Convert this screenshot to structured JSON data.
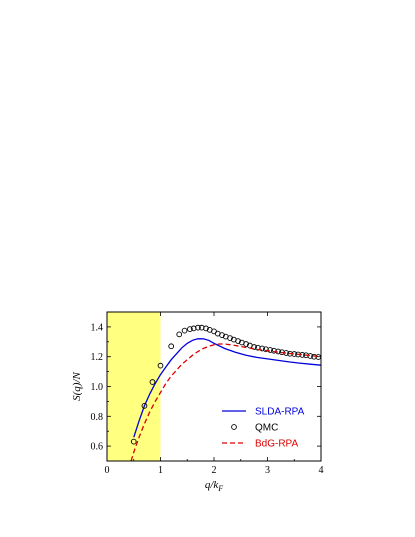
{
  "chart_data": {
    "type": "line",
    "xlabel_main": "q/k",
    "xlabel_sub": "F",
    "ylabel_main": "S(q)/N",
    "xlim": [
      0,
      4
    ],
    "ylim": [
      0.5,
      1.5
    ],
    "x_ticks": [
      0,
      1,
      2,
      3,
      4
    ],
    "x_tick_labels": [
      "0",
      "1",
      "2",
      "3",
      "4"
    ],
    "y_ticks": [
      0.6,
      0.8,
      1.0,
      1.2,
      1.4
    ],
    "y_tick_labels": [
      "0.6",
      "0.8",
      "1.0",
      "1.2",
      "1.4"
    ],
    "grid": false,
    "legend_position": "bottom-right",
    "shaded_region": {
      "x_range": [
        0,
        1
      ],
      "color": "#ffff80"
    },
    "series": [
      {
        "name": "SLDA-RPA",
        "style": "solid",
        "color": "#0000dd",
        "x": [
          0.5,
          0.6,
          0.7,
          0.8,
          0.9,
          1.0,
          1.1,
          1.2,
          1.3,
          1.4,
          1.5,
          1.6,
          1.7,
          1.8,
          1.9,
          2.0,
          2.2,
          2.4,
          2.6,
          2.8,
          3.0,
          3.2,
          3.4,
          3.6,
          3.8,
          4.0
        ],
        "y": [
          0.66,
          0.77,
          0.87,
          0.95,
          1.02,
          1.08,
          1.13,
          1.18,
          1.22,
          1.26,
          1.29,
          1.31,
          1.32,
          1.32,
          1.31,
          1.29,
          1.255,
          1.23,
          1.21,
          1.195,
          1.185,
          1.175,
          1.165,
          1.157,
          1.15,
          1.143
        ]
      },
      {
        "name": "QMC",
        "style": "open-circle",
        "color": "#000000",
        "x": [
          0.5,
          0.7,
          0.85,
          1.0,
          1.2,
          1.35,
          1.45,
          1.55,
          1.62,
          1.7,
          1.77,
          1.85,
          1.92,
          2.0,
          2.07,
          2.15,
          2.22,
          2.3,
          2.37,
          2.45,
          2.52,
          2.6,
          2.67,
          2.75,
          2.82,
          2.9,
          2.97,
          3.05,
          3.12,
          3.2,
          3.27,
          3.35,
          3.42,
          3.5,
          3.57,
          3.65,
          3.72,
          3.8,
          3.87,
          3.95
        ],
        "y": [
          0.63,
          0.87,
          1.03,
          1.14,
          1.27,
          1.35,
          1.375,
          1.385,
          1.39,
          1.395,
          1.395,
          1.39,
          1.38,
          1.37,
          1.355,
          1.345,
          1.335,
          1.325,
          1.315,
          1.305,
          1.295,
          1.285,
          1.275,
          1.265,
          1.26,
          1.255,
          1.25,
          1.245,
          1.24,
          1.235,
          1.23,
          1.225,
          1.22,
          1.218,
          1.215,
          1.212,
          1.21,
          1.205,
          1.2,
          1.198
        ]
      },
      {
        "name": "BdG-RPA",
        "style": "dashed",
        "color": "#dd0000",
        "x": [
          0.45,
          0.5,
          0.6,
          0.7,
          0.8,
          0.9,
          1.0,
          1.1,
          1.2,
          1.3,
          1.4,
          1.5,
          1.6,
          1.7,
          1.8,
          1.9,
          2.0,
          2.1,
          2.2,
          2.4,
          2.6,
          2.8,
          3.0,
          3.2,
          3.4,
          3.6,
          3.8,
          4.0
        ],
        "y": [
          0.5,
          0.56,
          0.66,
          0.75,
          0.83,
          0.9,
          0.96,
          1.02,
          1.07,
          1.11,
          1.15,
          1.18,
          1.21,
          1.235,
          1.255,
          1.27,
          1.28,
          1.285,
          1.285,
          1.275,
          1.262,
          1.25,
          1.24,
          1.23,
          1.222,
          1.215,
          1.208,
          1.2
        ]
      }
    ]
  }
}
